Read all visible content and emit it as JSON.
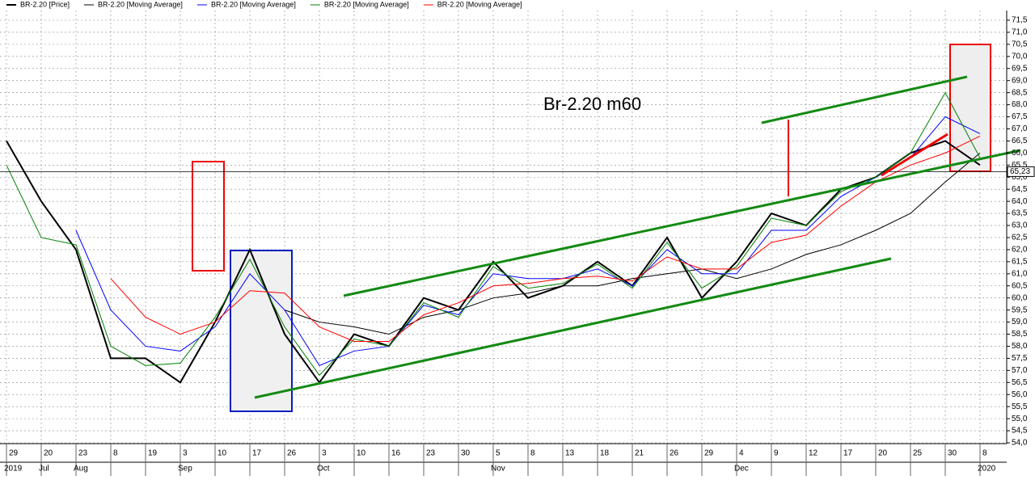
{
  "chart_data": {
    "type": "line",
    "annotation": "Br-2.20 m60",
    "categories": [
      "29",
      "20",
      "23",
      "8",
      "19",
      "3",
      "10",
      "17",
      "26",
      "3",
      "10",
      "16",
      "23",
      "30",
      "5",
      "8",
      "13",
      "18",
      "21",
      "26",
      "29",
      "4",
      "9",
      "12",
      "17",
      "20",
      "25",
      "30",
      "8"
    ],
    "period_labels": [
      "2019",
      "Jul",
      "Aug",
      null,
      null,
      "Sep",
      null,
      null,
      null,
      "Oct",
      null,
      null,
      null,
      null,
      "Nov",
      null,
      null,
      null,
      null,
      null,
      null,
      "Dec",
      null,
      null,
      null,
      null,
      null,
      null,
      "2020"
    ],
    "series": [
      {
        "name": "BR-2.20 [Price]",
        "color": "#000000",
        "values": [
          66.5,
          64.0,
          62.0,
          57.5,
          57.5,
          56.5,
          59.0,
          62.0,
          58.5,
          56.5,
          58.5,
          58.0,
          60.0,
          59.5,
          61.5,
          60.0,
          60.5,
          61.5,
          60.5,
          62.5,
          60.0,
          61.5,
          63.5,
          63.0,
          64.5,
          65.0,
          66.0,
          66.5,
          65.5
        ]
      },
      {
        "name": "BR-2.20 [Moving Average]",
        "color": "#000000",
        "values": [
          null,
          null,
          null,
          null,
          null,
          null,
          null,
          null,
          59.5,
          59.0,
          58.8,
          58.5,
          59.2,
          59.5,
          60.0,
          60.2,
          60.5,
          60.5,
          60.8,
          61.0,
          61.2,
          60.8,
          61.2,
          61.8,
          62.2,
          62.8,
          63.5,
          64.8,
          66.0
        ]
      },
      {
        "name": "BR-2.20 [Moving Average]",
        "color": "#0000ff",
        "values": [
          null,
          null,
          62.8,
          59.5,
          58.0,
          57.8,
          58.8,
          61.0,
          59.5,
          57.2,
          57.8,
          58.0,
          59.7,
          59.3,
          61.0,
          60.8,
          60.8,
          61.2,
          60.5,
          62.0,
          61.0,
          61.0,
          62.8,
          62.8,
          64.2,
          65.0,
          65.8,
          67.5,
          66.8
        ]
      },
      {
        "name": "BR-2.20 [Moving Average]",
        "color": "#008000",
        "values": [
          65.5,
          62.5,
          62.2,
          58.0,
          57.2,
          57.3,
          59.2,
          61.6,
          58.8,
          56.8,
          58.3,
          58.0,
          59.8,
          59.2,
          61.3,
          60.4,
          60.6,
          61.4,
          60.4,
          62.3,
          60.4,
          61.3,
          63.3,
          63.0,
          64.4,
          65.0,
          66.0,
          68.5,
          65.8
        ]
      },
      {
        "name": "BR-2.20 [Moving Average]",
        "color": "#ff0000",
        "values": [
          null,
          null,
          null,
          60.8,
          59.2,
          58.5,
          59.0,
          60.3,
          60.2,
          58.8,
          58.2,
          58.2,
          59.3,
          59.8,
          60.5,
          60.6,
          60.8,
          60.9,
          60.7,
          61.7,
          61.2,
          61.2,
          62.3,
          62.6,
          63.8,
          64.8,
          65.5,
          66.0,
          66.7
        ]
      }
    ],
    "last_price": {
      "value": 65.23,
      "label": "65,23"
    },
    "ylim": [
      54.0,
      71.5
    ],
    "yticks": [
      {
        "value": 54.0,
        "label": "54,0"
      },
      {
        "value": 54.5,
        "label": "54,5"
      },
      {
        "value": 55.0,
        "label": "55,0"
      },
      {
        "value": 55.5,
        "label": "55,5"
      },
      {
        "value": 56.0,
        "label": "56,0"
      },
      {
        "value": 56.5,
        "label": "56,5"
      },
      {
        "value": 57.0,
        "label": "57,0"
      },
      {
        "value": 57.5,
        "label": "57,5"
      },
      {
        "value": 58.0,
        "label": "58,0"
      },
      {
        "value": 58.5,
        "label": "58,5"
      },
      {
        "value": 59.0,
        "label": "59,0"
      },
      {
        "value": 59.5,
        "label": "59,5"
      },
      {
        "value": 60.0,
        "label": "60,0"
      },
      {
        "value": 60.5,
        "label": "60,5"
      },
      {
        "value": 61.0,
        "label": "61,0"
      },
      {
        "value": 61.5,
        "label": "61,5"
      },
      {
        "value": 62.0,
        "label": "62,0"
      },
      {
        "value": 62.5,
        "label": "62,5"
      },
      {
        "value": 63.0,
        "label": "63,0"
      },
      {
        "value": 63.5,
        "label": "63,5"
      },
      {
        "value": 64.0,
        "label": "64,0"
      },
      {
        "value": 64.5,
        "label": "64,5"
      },
      {
        "value": 65.0,
        "label": "65,0"
      },
      {
        "value": 65.5,
        "label": "65,5"
      },
      {
        "value": 66.0,
        "label": "66,0"
      },
      {
        "value": 66.5,
        "label": "66,5"
      },
      {
        "value": 67.0,
        "label": "67,0"
      },
      {
        "value": 67.5,
        "label": "67,5"
      },
      {
        "value": 68.0,
        "label": "68,0"
      },
      {
        "value": 68.5,
        "label": "68,5"
      },
      {
        "value": 69.0,
        "label": "69,0"
      },
      {
        "value": 69.5,
        "label": "69,5"
      },
      {
        "value": 70.0,
        "label": "70,0"
      },
      {
        "value": 70.5,
        "label": "70,5"
      },
      {
        "value": 71.0,
        "label": "71,0"
      },
      {
        "value": 71.5,
        "label": "71,5"
      }
    ],
    "grid": true
  }
}
